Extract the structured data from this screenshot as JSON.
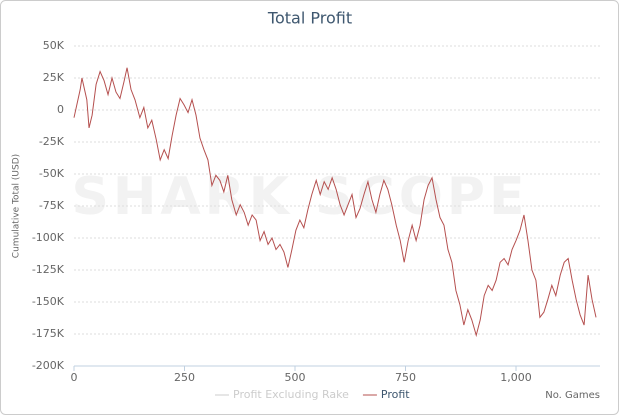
{
  "chart_data": {
    "type": "line",
    "title": "Total Profit",
    "y_label": "Cumulative Total (USD)",
    "x_label": "No. Games",
    "watermark": "SHARK SCOPE",
    "xlim": [
      0,
      1190
    ],
    "xticks": [
      0,
      250,
      500,
      750,
      {
        "value": 1000,
        "label": "1,000"
      }
    ],
    "ylim": [
      -200000,
      50000
    ],
    "yticks": [
      {
        "value": -200000,
        "label": "-200K"
      },
      {
        "value": -175000,
        "label": "-175K"
      },
      {
        "value": -150000,
        "label": "-150K"
      },
      {
        "value": -125000,
        "label": "-125K"
      },
      {
        "value": -100000,
        "label": "-100K"
      },
      {
        "value": -75000,
        "label": "-75K"
      },
      {
        "value": -50000,
        "label": "-50K"
      },
      {
        "value": -25000,
        "label": "-25K"
      },
      0,
      {
        "value": 25000,
        "label": "25K"
      },
      {
        "value": 50000,
        "label": "50K"
      }
    ],
    "grid": true,
    "x": [
      0,
      14,
      18,
      29,
      34,
      41,
      50,
      59,
      68,
      77,
      86,
      95,
      104,
      113,
      120,
      129,
      138,
      149,
      158,
      167,
      176,
      186,
      195,
      204,
      213,
      222,
      231,
      240,
      249,
      258,
      267,
      276,
      285,
      294,
      303,
      312,
      321,
      330,
      339,
      348,
      357,
      367,
      376,
      385,
      394,
      403,
      412,
      421,
      430,
      439,
      448,
      457,
      466,
      475,
      484,
      493,
      502,
      511,
      520,
      529,
      538,
      548,
      557,
      566,
      575,
      584,
      593,
      602,
      611,
      620,
      629,
      638,
      647,
      656,
      665,
      674,
      683,
      692,
      701,
      710,
      719,
      729,
      738,
      747,
      756,
      765,
      774,
      783,
      792,
      801,
      810,
      819,
      828,
      837,
      846,
      855,
      864,
      873,
      882,
      891,
      900,
      910,
      919,
      928,
      937,
      946,
      955,
      964,
      973,
      982,
      991,
      1000,
      1009,
      1018,
      1027,
      1036,
      1045,
      1054,
      1063,
      1072,
      1081,
      1090,
      1100,
      1109,
      1118,
      1127,
      1136,
      1145,
      1154,
      1163,
      1172,
      1181
    ],
    "series": [
      {
        "name": "Profit Excluding Rake",
        "color": "#cccccc",
        "visible": false
      },
      {
        "name": "Profit",
        "color": "#b5504f",
        "visible": true,
        "values": [
          -6000,
          16000,
          25000,
          8000,
          -14000,
          -4000,
          20000,
          30000,
          23000,
          12000,
          25000,
          14000,
          9000,
          22000,
          33000,
          16000,
          8000,
          -6000,
          2000,
          -14000,
          -8000,
          -23000,
          -39000,
          -31000,
          -38000,
          -20000,
          -4000,
          9000,
          4000,
          -2000,
          8000,
          -4000,
          -22000,
          -31000,
          -39000,
          -59000,
          -51000,
          -55000,
          -64000,
          -51000,
          -70000,
          -82000,
          -74000,
          -80000,
          -90000,
          -82000,
          -86000,
          -102000,
          -95000,
          -105000,
          -100000,
          -109000,
          -105000,
          -111000,
          -123000,
          -109000,
          -94000,
          -86000,
          -92000,
          -78000,
          -66000,
          -55000,
          -66000,
          -56000,
          -62000,
          -53000,
          -62000,
          -74000,
          -82000,
          -74000,
          -66000,
          -84000,
          -77000,
          -66000,
          -56000,
          -70000,
          -80000,
          -66000,
          -55000,
          -62000,
          -74000,
          -90000,
          -102000,
          -119000,
          -102000,
          -90000,
          -102000,
          -90000,
          -70000,
          -59000,
          -53000,
          -70000,
          -84000,
          -90000,
          -109000,
          -119000,
          -141000,
          -152000,
          -168000,
          -156000,
          -164000,
          -176000,
          -164000,
          -145000,
          -137000,
          -141000,
          -133000,
          -119000,
          -116000,
          -121000,
          -109000,
          -102000,
          -94000,
          -82000,
          -102000,
          -125000,
          -133000,
          -162000,
          -158000,
          -148000,
          -137000,
          -145000,
          -129000,
          -119000,
          -116000,
          -133000,
          -148000,
          -160000,
          -168000,
          -129000,
          -148000,
          -162000
        ]
      }
    ]
  }
}
